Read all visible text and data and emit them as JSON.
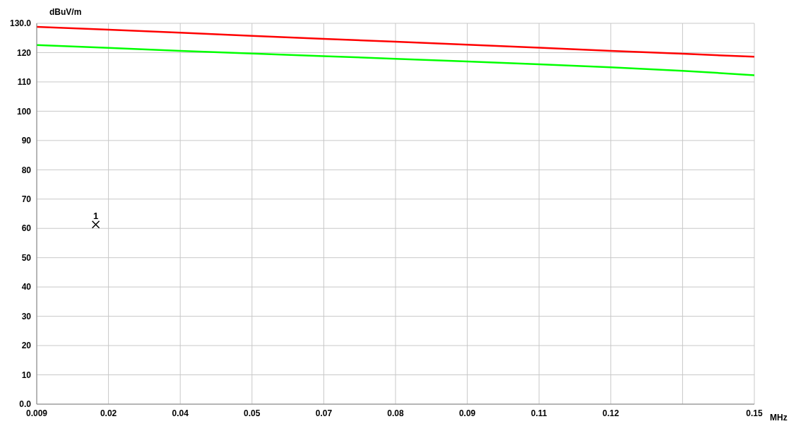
{
  "chart_data": {
    "type": "line",
    "ylabel": "dBuV/m",
    "xlabel": "MHz",
    "x": [
      0.009,
      0.0231,
      0.0372,
      0.0513,
      0.0654,
      0.0795,
      0.0936,
      0.1077,
      0.1218,
      0.1359,
      0.15
    ],
    "series": [
      {
        "color": "#ff0000",
        "values": [
          128.8,
          127.8,
          126.8,
          125.7,
          124.7,
          123.7,
          122.7,
          121.7,
          120.6,
          119.6,
          118.6
        ]
      },
      {
        "color": "#00ff00",
        "values": [
          122.6,
          121.6,
          120.6,
          119.7,
          118.8,
          117.9,
          117.0,
          116.0,
          115.0,
          113.8,
          112.3
        ]
      },
      {
        "type": "scatter",
        "color": "#000000",
        "marker": "cross",
        "x": [
          0.0206
        ],
        "values": [
          61.3
        ]
      }
    ],
    "annotations": [
      {
        "text": "1",
        "x": 0.0206,
        "y": 61.3
      }
    ],
    "xlim": [
      0.009,
      0.15
    ],
    "xticks": [
      {
        "value": 0.009,
        "label": "0.009"
      },
      {
        "value": 0.0231,
        "label": "0.02"
      },
      {
        "value": 0.0372,
        "label": "0.04"
      },
      {
        "value": 0.0513,
        "label": "0.05"
      },
      {
        "value": 0.0654,
        "label": "0.07"
      },
      {
        "value": 0.0795,
        "label": "0.08"
      },
      {
        "value": 0.0936,
        "label": "0.09"
      },
      {
        "value": 0.1077,
        "label": "0.11"
      },
      {
        "value": 0.1218,
        "label": "0.12"
      },
      {
        "value": 0.1359,
        "label": null
      },
      {
        "value": 0.15,
        "label": "0.15"
      }
    ],
    "ylim": [
      0,
      130
    ],
    "yticks": [
      {
        "value": 0,
        "label": "0.0"
      },
      10,
      20,
      30,
      40,
      50,
      60,
      70,
      80,
      90,
      100,
      110,
      120,
      {
        "value": 130,
        "label": "130.0"
      }
    ],
    "grid": true,
    "marker": "none",
    "line_style": "solid"
  }
}
